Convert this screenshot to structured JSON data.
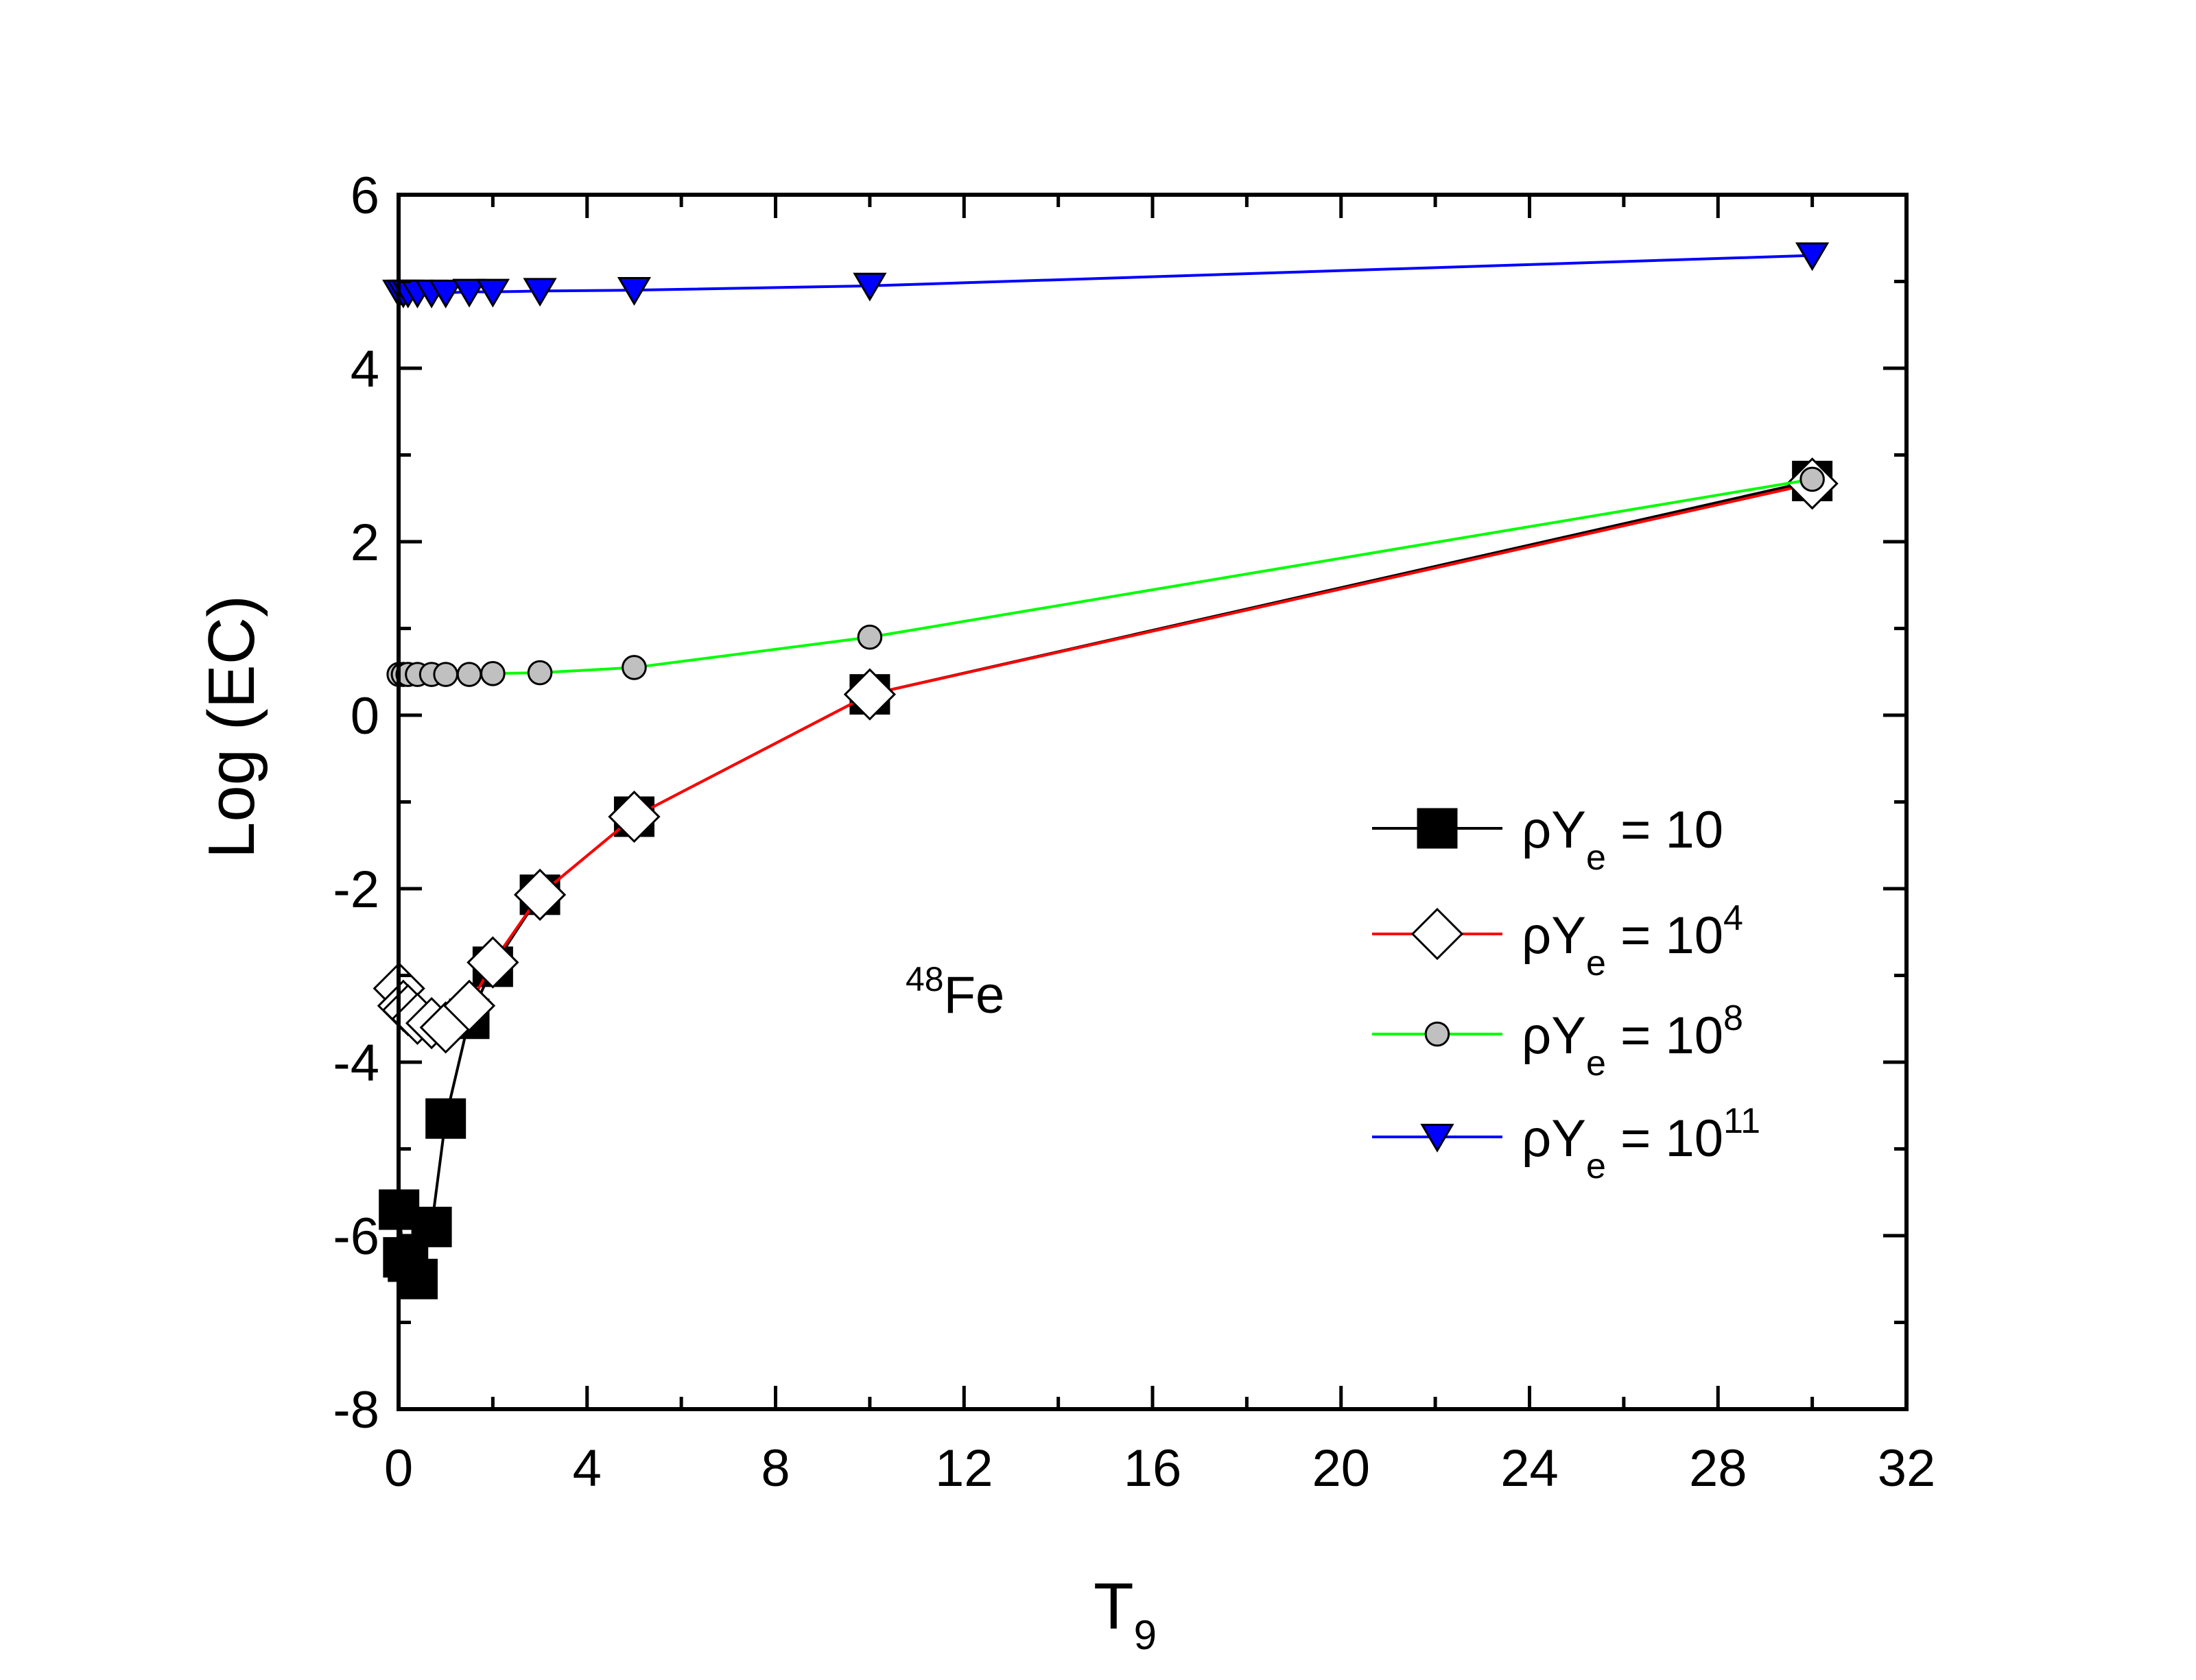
{
  "chart_data": {
    "type": "line",
    "xlabel": {
      "main": "T",
      "sub": "9"
    },
    "ylabel": "Log (EC)",
    "xlim": [
      0,
      32
    ],
    "ylim": [
      -8,
      6
    ],
    "xticks": [
      0,
      4,
      8,
      12,
      16,
      20,
      24,
      28,
      32
    ],
    "yticks": [
      -8,
      -6,
      -4,
      -2,
      0,
      2,
      4,
      6
    ],
    "grid": false,
    "legend_position": "right-middle",
    "annotation": {
      "sup": "48",
      "text": "Fe"
    },
    "series": [
      {
        "name": "ρY",
        "name_sub": "e",
        "name_eq": " = 10",
        "name_sup": "",
        "marker": "square",
        "marker_fill": "#000000",
        "line_color": "#000000",
        "x": [
          0.01,
          0.1,
          0.2,
          0.4,
          0.7,
          1,
          1.5,
          2,
          3,
          5,
          10,
          30
        ],
        "y": [
          -5.7,
          -6.25,
          -6.3,
          -6.5,
          -5.9,
          -4.65,
          -3.5,
          -2.9,
          -2.07,
          -1.17,
          0.24,
          2.7
        ]
      },
      {
        "name": "ρY",
        "name_sub": "e",
        "name_eq": " = 10",
        "name_sup": "4",
        "marker": "diamond",
        "marker_fill": "#ffffff",
        "line_color": "#ff0000",
        "x": [
          0.01,
          0.1,
          0.2,
          0.4,
          0.7,
          1,
          1.5,
          2,
          3,
          5,
          10,
          30
        ],
        "y": [
          -3.15,
          -3.35,
          -3.4,
          -3.5,
          -3.55,
          -3.6,
          -3.35,
          -2.85,
          -2.07,
          -1.17,
          0.24,
          2.67
        ]
      },
      {
        "name": "ρY",
        "name_sub": "e",
        "name_eq": " = 10",
        "name_sup": "8",
        "marker": "circle",
        "marker_fill": "#c0c0c0",
        "line_color": "#00ff00",
        "x": [
          0.01,
          0.1,
          0.2,
          0.4,
          0.7,
          1,
          1.5,
          2,
          3,
          5,
          10,
          30
        ],
        "y": [
          0.47,
          0.47,
          0.47,
          0.47,
          0.47,
          0.47,
          0.47,
          0.48,
          0.49,
          0.55,
          0.9,
          2.72
        ]
      },
      {
        "name": "ρY",
        "name_sub": "e",
        "name_eq": " = 10",
        "name_sup": "11",
        "marker": "triangle-down",
        "marker_fill": "#0000ff",
        "line_color": "#0000ff",
        "x": [
          0.01,
          0.1,
          0.2,
          0.4,
          0.7,
          1,
          1.5,
          2,
          3,
          5,
          10,
          30
        ],
        "y": [
          4.87,
          4.87,
          4.87,
          4.87,
          4.87,
          4.87,
          4.88,
          4.88,
          4.89,
          4.9,
          4.95,
          5.3
        ]
      }
    ]
  }
}
